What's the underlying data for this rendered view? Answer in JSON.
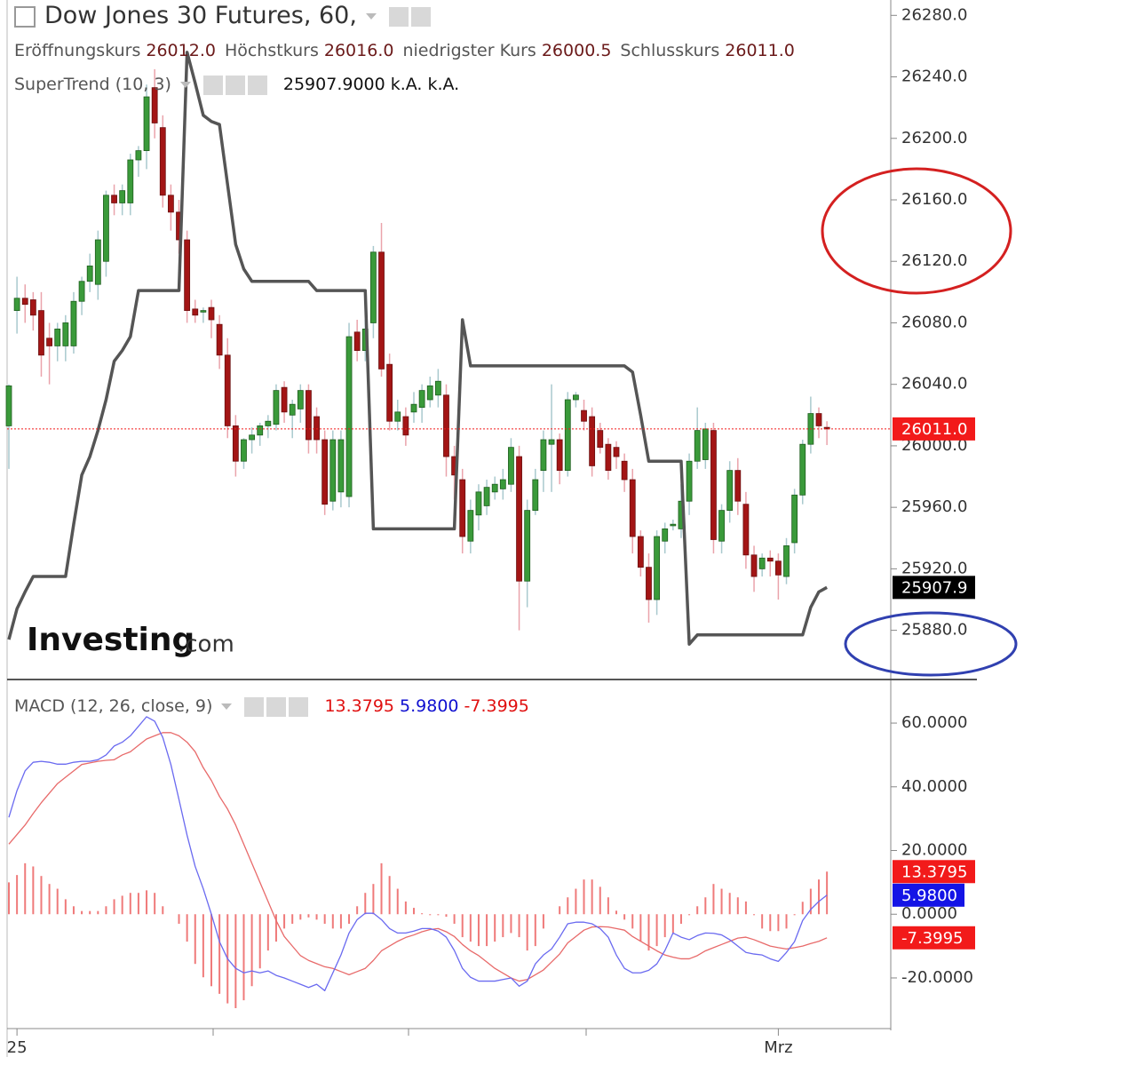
{
  "chart_data": [
    {
      "type": "candlestick",
      "title": "Dow Jones 30 Futures, 60,",
      "legend_values": [
        {
          "name": "Eröffnungskurs",
          "value": "26012.0"
        },
        {
          "name": "Höchstkurs",
          "value": "26016.0"
        },
        {
          "name": "niedrigster Kurs",
          "value": "26000.5"
        },
        {
          "name": "Schlusskurs",
          "value": "26011.0"
        }
      ],
      "watermark": [
        "Investing",
        ".com"
      ],
      "categories": [
        null,
        "25",
        null,
        null,
        null,
        null,
        null,
        null,
        null,
        null,
        null,
        null,
        null,
        null,
        null,
        null,
        null,
        null,
        null,
        null,
        null,
        null,
        null,
        null,
        null,
        null,
        null,
        null,
        null,
        null,
        null,
        null,
        null,
        null,
        null,
        null,
        null,
        null,
        null,
        null,
        null,
        null,
        null,
        null,
        null,
        null,
        null,
        null,
        null,
        null,
        null,
        null,
        null,
        null,
        null,
        null,
        null,
        null,
        null,
        null,
        null,
        null,
        null,
        null,
        null,
        null,
        null,
        null,
        null,
        null,
        null,
        null,
        null,
        null,
        null,
        null,
        null,
        null,
        null,
        null,
        null,
        null,
        null,
        null,
        null,
        null,
        null,
        null,
        null,
        null,
        null,
        null,
        null,
        null,
        null,
        "Mrz",
        null,
        null,
        null,
        null,
        null,
        null
      ],
      "ohlc": [
        [
          26013,
          26040,
          25985,
          26039
        ],
        [
          26088,
          26110,
          26073,
          26096
        ],
        [
          26096,
          26105,
          26080,
          26092
        ],
        [
          26095,
          26100,
          26075,
          26085
        ],
        [
          26088,
          26100,
          26045,
          26059
        ],
        [
          26070,
          26080,
          26040,
          26065
        ],
        [
          26065,
          26080,
          26055,
          26076
        ],
        [
          26065,
          26085,
          26055,
          26080
        ],
        [
          26065,
          26100,
          26060,
          26094
        ],
        [
          26094,
          26110,
          26085,
          26107
        ],
        [
          26107,
          26125,
          26100,
          26117
        ],
        [
          26105,
          26140,
          26095,
          26134
        ],
        [
          26120,
          26166,
          26110,
          26163
        ],
        [
          26163,
          26170,
          26150,
          26158
        ],
        [
          26158,
          26170,
          26150,
          26166
        ],
        [
          26158,
          26190,
          26150,
          26186
        ],
        [
          26186,
          26195,
          26175,
          26192
        ],
        [
          26192,
          26235,
          26180,
          26227
        ],
        [
          26233,
          26245,
          26200,
          26210
        ],
        [
          26207,
          26215,
          26155,
          26163
        ],
        [
          26163,
          26170,
          26140,
          26152
        ],
        [
          26152,
          26160,
          26125,
          26134
        ],
        [
          26134,
          26140,
          26080,
          26088
        ],
        [
          26089,
          26095,
          26080,
          26085
        ],
        [
          26087,
          26090,
          26080,
          26088
        ],
        [
          26090,
          26095,
          26070,
          26082
        ],
        [
          26079,
          26085,
          26050,
          26059
        ],
        [
          26059,
          26070,
          26005,
          26013
        ],
        [
          26013,
          26020,
          25980,
          25990
        ],
        [
          25990,
          26005,
          25985,
          26004
        ],
        [
          26004,
          26012,
          25995,
          26007
        ],
        [
          26007,
          26015,
          26000,
          26013
        ],
        [
          26013,
          26020,
          26005,
          26016
        ],
        [
          26014,
          26040,
          26010,
          26036
        ],
        [
          26038,
          26042,
          26015,
          26022
        ],
        [
          26020,
          26030,
          26005,
          26027
        ],
        [
          26024,
          26040,
          26015,
          26036
        ],
        [
          26036,
          26040,
          25995,
          26004
        ],
        [
          26019,
          26025,
          25995,
          26004
        ],
        [
          26004,
          26010,
          25955,
          25962
        ],
        [
          25964,
          26010,
          25958,
          26004
        ],
        [
          25970,
          26010,
          25960,
          26004
        ],
        [
          25967,
          26080,
          25960,
          26071
        ],
        [
          26074,
          26082,
          26055,
          26062
        ],
        [
          26062,
          26082,
          26055,
          26076
        ],
        [
          26080,
          26130,
          26070,
          26126
        ],
        [
          26126,
          26145,
          26045,
          26050
        ],
        [
          26053,
          26060,
          26010,
          26016
        ],
        [
          26016,
          26030,
          26010,
          26022
        ],
        [
          26019,
          26025,
          26000,
          26007
        ],
        [
          26022,
          26035,
          26015,
          26027
        ],
        [
          26025,
          26040,
          26015,
          26036
        ],
        [
          26030,
          26045,
          26025,
          26039
        ],
        [
          26033,
          26050,
          26025,
          26042
        ],
        [
          26033,
          26040,
          25980,
          25993
        ],
        [
          25993,
          26000,
          25965,
          25981
        ],
        [
          25978,
          25985,
          25930,
          25941
        ],
        [
          25938,
          25965,
          25930,
          25958
        ],
        [
          25955,
          25975,
          25945,
          25970
        ],
        [
          25961,
          25978,
          25955,
          25973
        ],
        [
          25970,
          25980,
          25965,
          25975
        ],
        [
          25972,
          25985,
          25965,
          25978
        ],
        [
          25975,
          26005,
          25970,
          25999
        ],
        [
          25993,
          26000,
          25880,
          25912
        ],
        [
          25912,
          25965,
          25895,
          25958
        ],
        [
          25958,
          25985,
          25955,
          25978
        ],
        [
          25984,
          26010,
          25970,
          26004
        ],
        [
          26001,
          26040,
          25970,
          26004
        ],
        [
          26004,
          26008,
          25975,
          25984
        ],
        [
          25984,
          26035,
          25980,
          26030
        ],
        [
          26030,
          26035,
          26025,
          26033
        ],
        [
          26023,
          26030,
          26010,
          26016
        ],
        [
          26019,
          26025,
          25980,
          25987
        ],
        [
          26010,
          26015,
          25995,
          25999
        ],
        [
          26001,
          26005,
          25978,
          25984
        ],
        [
          25999,
          26003,
          25985,
          25993
        ],
        [
          25990,
          25995,
          25970,
          25978
        ],
        [
          25978,
          25985,
          25930,
          25941
        ],
        [
          25941,
          25945,
          25915,
          25921
        ],
        [
          25921,
          25930,
          25885,
          25900
        ],
        [
          25900,
          25945,
          25890,
          25941
        ],
        [
          25938,
          25950,
          25930,
          25946
        ],
        [
          25948,
          25952,
          25945,
          25949
        ],
        [
          25946,
          25975,
          25940,
          25964
        ],
        [
          25964,
          25995,
          25955,
          25990
        ],
        [
          25990,
          26025,
          25985,
          26010
        ],
        [
          25991,
          26015,
          25985,
          26011
        ],
        [
          26010,
          26015,
          25930,
          25939
        ],
        [
          25938,
          25962,
          25930,
          25958
        ],
        [
          25958,
          25990,
          25950,
          25984
        ],
        [
          25984,
          25992,
          25955,
          25964
        ],
        [
          25962,
          25970,
          25920,
          25929
        ],
        [
          25929,
          25935,
          25905,
          25915
        ],
        [
          25920,
          25930,
          25915,
          25927
        ],
        [
          25927,
          25932,
          25915,
          25925
        ],
        [
          25925,
          25930,
          25900,
          25916
        ],
        [
          25915,
          25940,
          25910,
          25935
        ],
        [
          25937,
          25972,
          25930,
          25968
        ],
        [
          25968,
          26004,
          25962,
          26001
        ],
        [
          26001,
          26032,
          25995,
          26021
        ],
        [
          26021,
          26025,
          26005,
          26013
        ],
        [
          26012,
          26016,
          26000.5,
          26011
        ]
      ],
      "up_color": "#3a9a3a",
      "down_color": "#a31515",
      "up_wick": "#a9c9ce",
      "down_wick": "#eaa3ab",
      "last_price_label": "26011.0",
      "last_price_color": "#f21a1a",
      "indicator": {
        "name": "SuperTrend (10, 3)",
        "color": "#555555",
        "value_label": "25907.9000",
        "extra": [
          "k.A.",
          "k.A."
        ],
        "axis_label": "25907.9",
        "values": [
          25874,
          25894,
          25905,
          25915,
          25915,
          25915,
          25915,
          25915,
          25949,
          25981,
          25993,
          26010,
          26030,
          26055,
          26062,
          26071,
          26101,
          26101,
          26101,
          26101,
          26101,
          26101,
          26256,
          26236,
          26215,
          26211,
          26209,
          26170,
          26131,
          26115,
          26107,
          26107,
          26107,
          26107,
          26107,
          26107,
          26107,
          26107,
          26101,
          26101,
          26101,
          26101,
          26101,
          26101,
          26101,
          25946,
          25946,
          25946,
          25946,
          25946,
          25946,
          25946,
          25946,
          25946,
          25946,
          25946,
          26082,
          26052,
          26052,
          26052,
          26052,
          26052,
          26052,
          26052,
          26052,
          26052,
          26052,
          26052,
          26052,
          26052,
          26052,
          26052,
          26052,
          26052,
          26052,
          26052,
          26052,
          26048,
          26020,
          25990,
          25990,
          25990,
          25990,
          25990,
          25871,
          25877,
          25877,
          25877,
          25877,
          25877,
          25877,
          25877,
          25877,
          25877,
          25877,
          25877,
          25877,
          25877,
          25877,
          25895,
          25905,
          25907.9
        ]
      },
      "ylim": [
        25848,
        26290
      ],
      "yticks": [
        {
          "value": 25880,
          "label": "25880.0"
        },
        {
          "value": 25920,
          "label": "25920.0"
        },
        {
          "value": 25960,
          "label": "25960.0"
        },
        {
          "value": 26000,
          "label": "26000.0"
        },
        {
          "value": 26040,
          "label": "26040.0"
        },
        {
          "value": 26080,
          "label": "26080.0"
        },
        {
          "value": 26120,
          "label": "26120.0"
        },
        {
          "value": 26160,
          "label": "26160.0"
        },
        {
          "value": 26200,
          "label": "26200.0"
        },
        {
          "value": 26240,
          "label": "26240.0"
        },
        {
          "value": 26280,
          "label": "26280.0"
        }
      ]
    },
    {
      "type": "macd",
      "title": "MACD (12, 26, close, 9)",
      "histogram": {
        "color": "#ef7a7a",
        "value_label": "13.3795",
        "axis_label": "13.3795",
        "label_color": "#f21a1a",
        "values": [
          10,
          12.3,
          16,
          15,
          12,
          9.5,
          8,
          4.7,
          2.5,
          1,
          1,
          1,
          2.5,
          4.7,
          5.8,
          6.7,
          6.7,
          7.5,
          6.7,
          2.5,
          0,
          -3,
          -8.6,
          -15.6,
          -19.8,
          -22.6,
          -25,
          -28,
          -29.5,
          -27,
          -22.6,
          -17,
          -11.4,
          -8.6,
          -4.5,
          -3,
          -1.7,
          -1,
          -1.7,
          -3,
          -4.5,
          -4.5,
          -3,
          2.5,
          6.7,
          9.5,
          16,
          12,
          8,
          4,
          2,
          0.3,
          -0.3,
          -0.3,
          -0.8,
          -3,
          -7.2,
          -8.6,
          -10,
          -10,
          -8.6,
          -7.2,
          -5.9,
          -7.2,
          -11.4,
          -10,
          -4.5,
          0,
          2.5,
          5.3,
          8,
          10.9,
          10.9,
          8.6,
          5.3,
          1.1,
          -1.7,
          -4.5,
          -8.6,
          -11.4,
          -10,
          -7.2,
          -5.9,
          -3,
          -0.3,
          2.5,
          5.3,
          9.5,
          8,
          6.7,
          5.3,
          4,
          -0.3,
          -4.5,
          -5.3,
          -5.3,
          -4.5,
          -0.3,
          3.9,
          8,
          10.9,
          13.3795
        ]
      },
      "macd": {
        "color": "#6a6af0",
        "value_label": "5.9800",
        "axis_label": "5.9800",
        "label_color": "#1414e6",
        "values": [
          30.4,
          38.8,
          45,
          47.7,
          48,
          47.7,
          47.1,
          47.1,
          47.7,
          48,
          48,
          48.5,
          50,
          52.8,
          54,
          56,
          59,
          62,
          60.6,
          55.5,
          47,
          36,
          24.8,
          15,
          8,
          0,
          -8.6,
          -14,
          -17,
          -18.4,
          -17.8,
          -18.4,
          -17.8,
          -19.2,
          -20,
          -21,
          -22,
          -23,
          -22,
          -24,
          -18.4,
          -12.8,
          -5.9,
          -1.7,
          0.3,
          0.3,
          -1.7,
          -4.5,
          -5.9,
          -5.9,
          -5.3,
          -4.5,
          -4.5,
          -5.3,
          -7.2,
          -11.4,
          -17,
          -19.8,
          -21,
          -21,
          -21,
          -20.5,
          -20,
          -22.6,
          -21,
          -15.6,
          -12.8,
          -10.9,
          -7.2,
          -3,
          -2.5,
          -2.5,
          -3,
          -4.5,
          -7.2,
          -12.8,
          -17,
          -18.4,
          -18.4,
          -17.6,
          -15.6,
          -11.4,
          -5.9,
          -7.2,
          -8,
          -6.7,
          -5.9,
          -6,
          -6.5,
          -8,
          -10,
          -12,
          -12.5,
          -12.8,
          -14,
          -14.8,
          -12,
          -8.6,
          -2,
          1.5,
          4,
          5.98
        ]
      },
      "signal": {
        "color": "#e86a6a",
        "value_label": "-7.3995",
        "axis_label": "-7.3995",
        "label_color": "#f21a1a",
        "values": [
          22,
          25,
          28,
          31.6,
          35,
          38,
          41,
          43,
          45,
          47,
          47.5,
          48,
          48.3,
          48.5,
          50,
          51,
          53,
          55,
          56,
          57,
          57,
          56,
          54,
          51,
          46,
          42,
          37,
          33,
          28,
          22,
          16,
          10,
          4,
          -2,
          -7,
          -10,
          -13,
          -14.5,
          -15.5,
          -16.5,
          -17,
          -18,
          -19,
          -18,
          -17,
          -14.5,
          -11.5,
          -10,
          -8.5,
          -7.3,
          -6.5,
          -5.5,
          -4.8,
          -4.5,
          -5.5,
          -7,
          -9.5,
          -11.5,
          -13,
          -15,
          -17,
          -18.5,
          -20,
          -21,
          -20.5,
          -19,
          -17.5,
          -15,
          -12.5,
          -9,
          -7,
          -5,
          -4,
          -3.9,
          -4,
          -4.5,
          -5,
          -7,
          -8.5,
          -10,
          -11.5,
          -12.8,
          -13.5,
          -14,
          -14,
          -13,
          -11.5,
          -10.5,
          -9.5,
          -8.5,
          -7.5,
          -7.2,
          -8,
          -9,
          -10,
          -10.5,
          -10.9,
          -10.5,
          -10,
          -9.2,
          -8.5,
          -7.3995
        ]
      },
      "ylim": [
        -35.9,
        73.4
      ],
      "yticks": [
        {
          "value": -20,
          "label": "-20.0000"
        },
        {
          "value": 0,
          "label": "0.0000"
        },
        {
          "value": 20,
          "label": "20.0000"
        },
        {
          "value": 40,
          "label": "40.0000"
        },
        {
          "value": 60,
          "label": "60.0000"
        }
      ]
    }
  ]
}
